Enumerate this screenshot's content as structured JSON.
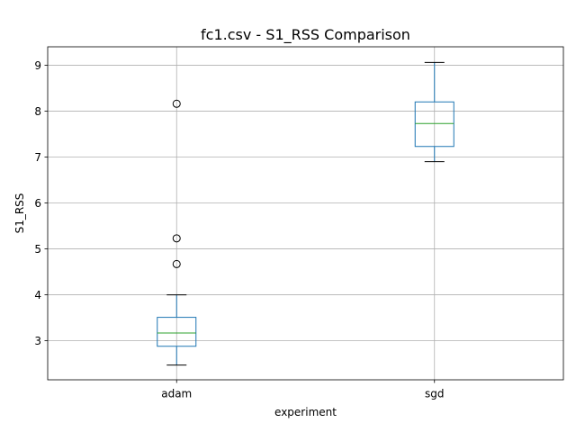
{
  "chart_data": {
    "type": "box",
    "title": "fc1.csv - S1_RSS Comparison",
    "xlabel": "experiment",
    "ylabel": "S1_RSS",
    "ylim": [
      2.15,
      9.4
    ],
    "yticks": [
      3,
      4,
      5,
      6,
      7,
      8,
      9
    ],
    "grid": true,
    "categories": [
      "adam",
      "sgd"
    ],
    "boxes": [
      {
        "category": "adam",
        "whisker_low": 2.47,
        "q1": 2.88,
        "median": 3.17,
        "q3": 3.51,
        "whisker_high": 4.0,
        "outliers": [
          4.67,
          5.23,
          8.16
        ]
      },
      {
        "category": "sgd",
        "whisker_low": 6.9,
        "q1": 7.23,
        "median": 7.73,
        "q3": 8.2,
        "whisker_high": 9.06,
        "outliers": []
      }
    ],
    "colors": {
      "box": "#1f77b4",
      "median": "#2ca02c",
      "whisker": "#1f77b4",
      "cap": "#000000",
      "grid": "#b0b0b0",
      "outlier": "#000000"
    }
  }
}
